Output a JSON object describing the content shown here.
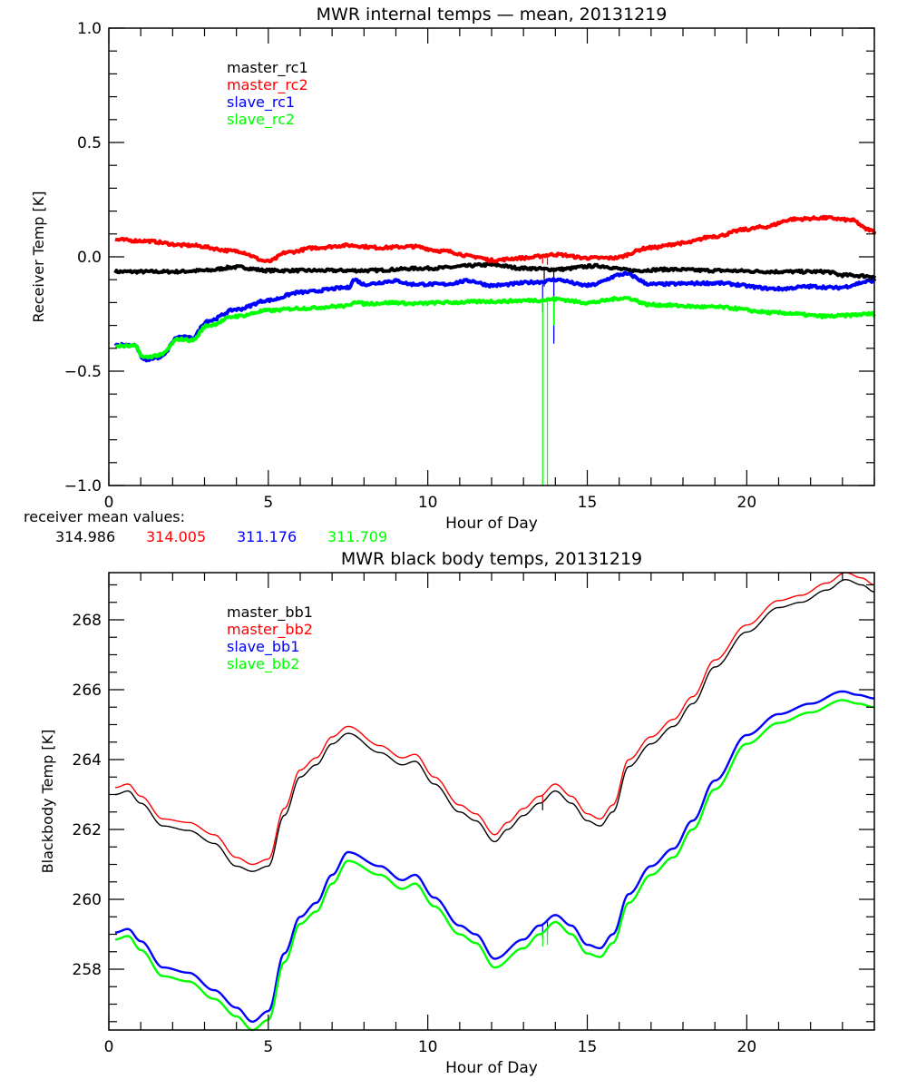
{
  "chart_data": [
    {
      "type": "line",
      "title": "MWR internal temps — mean, 20131219",
      "xlabel": "Hour of Day",
      "ylabel": "Receiver Temp [K]",
      "xlim": [
        0,
        24
      ],
      "ylim": [
        -1.0,
        1.0
      ],
      "xticks": [
        0,
        5,
        10,
        15,
        20
      ],
      "xtick_labels": [
        "0",
        "5",
        "10",
        "15",
        "20"
      ],
      "x_minor_step": 1,
      "yticks": [
        -1.0,
        -0.5,
        0.0,
        0.5,
        1.0
      ],
      "ytick_labels": [
        "−1.0",
        "−0.5",
        "0.0",
        "0.5",
        "1.0"
      ],
      "y_minor_step": 0.1,
      "grid": false,
      "legend_position": "top-left",
      "series": [
        {
          "name": "master_rc1",
          "color": "#000000",
          "width": "thick",
          "x": [
            0.2,
            2,
            3,
            4,
            5,
            6,
            8,
            10,
            12,
            13,
            14,
            15.3,
            16.5,
            17.5,
            19,
            21,
            22.5,
            23,
            24
          ],
          "y": [
            -0.065,
            -0.065,
            -0.06,
            -0.045,
            -0.06,
            -0.06,
            -0.06,
            -0.05,
            -0.035,
            -0.05,
            -0.055,
            -0.04,
            -0.06,
            -0.055,
            -0.06,
            -0.065,
            -0.065,
            -0.08,
            -0.085
          ],
          "spikes": [
            {
              "x": 13.65,
              "to": -0.13
            },
            {
              "x": 13.95,
              "to": -0.37
            }
          ]
        },
        {
          "name": "master_rc2",
          "color": "#ff0000",
          "width": "thick",
          "x": [
            0.2,
            1,
            2.5,
            4,
            5,
            5.6,
            6.5,
            7.5,
            8.5,
            9.5,
            10.5,
            11.5,
            12,
            13,
            14,
            15,
            15.8,
            17,
            18,
            19,
            20,
            20.5,
            21.5,
            22.5,
            23.3,
            23.8,
            24
          ],
          "y": [
            0.075,
            0.07,
            0.05,
            0.025,
            -0.02,
            0.02,
            0.04,
            0.05,
            0.04,
            0.045,
            0.025,
            0.0,
            -0.015,
            -0.005,
            0.01,
            -0.005,
            -0.005,
            0.04,
            0.06,
            0.09,
            0.12,
            0.13,
            0.165,
            0.17,
            0.16,
            0.12,
            0.11
          ],
          "spikes": [
            {
              "x": 13.6,
              "to": -0.03
            },
            {
              "x": 13.75,
              "to": -0.035
            }
          ]
        },
        {
          "name": "slave_rc1",
          "color": "#0000ff",
          "width": "thick",
          "x": [
            0.2,
            0.8,
            1.1,
            1.6,
            2.2,
            2.6,
            3.1,
            4,
            5,
            6,
            7.5,
            7.7,
            8,
            9,
            9.5,
            10.5,
            11.3,
            12,
            13.5,
            14,
            15,
            16.2,
            17,
            19,
            21,
            22,
            22.8,
            24
          ],
          "y": [
            -0.385,
            -0.385,
            -0.45,
            -0.44,
            -0.35,
            -0.355,
            -0.28,
            -0.23,
            -0.19,
            -0.155,
            -0.135,
            -0.1,
            -0.12,
            -0.105,
            -0.12,
            -0.12,
            -0.105,
            -0.125,
            -0.11,
            -0.1,
            -0.125,
            -0.075,
            -0.12,
            -0.115,
            -0.14,
            -0.13,
            -0.135,
            -0.105
          ],
          "spikes": [
            {
              "x": 13.6,
              "to": -0.24
            },
            {
              "x": 13.95,
              "to": -0.38
            }
          ]
        },
        {
          "name": "slave_rc2",
          "color": "#00ff00",
          "width": "thick",
          "x": [
            0.2,
            0.8,
            1.1,
            1.6,
            2.2,
            2.6,
            3.1,
            4,
            5,
            6,
            7.5,
            7.7,
            8,
            9,
            9.5,
            10.5,
            12,
            13.5,
            14,
            15,
            16.2,
            17,
            19,
            21,
            22.5,
            24
          ],
          "y": [
            -0.39,
            -0.39,
            -0.44,
            -0.43,
            -0.36,
            -0.365,
            -0.3,
            -0.26,
            -0.235,
            -0.225,
            -0.215,
            -0.195,
            -0.205,
            -0.2,
            -0.205,
            -0.2,
            -0.195,
            -0.19,
            -0.185,
            -0.2,
            -0.18,
            -0.21,
            -0.22,
            -0.245,
            -0.26,
            -0.25
          ],
          "spikes": [
            {
              "x": 13.6,
              "to": -1.0
            },
            {
              "x": 13.75,
              "to": -1.0
            },
            {
              "x": 13.95,
              "to": -0.3
            }
          ]
        }
      ],
      "annotation": {
        "label": "receiver mean values:",
        "values": [
          {
            "text": "314.986",
            "color": "#000000"
          },
          {
            "text": "314.005",
            "color": "#ff0000"
          },
          {
            "text": "311.176",
            "color": "#0000ff"
          },
          {
            "text": "311.709",
            "color": "#00ff00"
          }
        ]
      }
    },
    {
      "type": "line",
      "title": "MWR black body temps, 20131219",
      "xlabel": "Hour of Day",
      "ylabel": "Blackbody Temp [K]",
      "xlim": [
        0,
        24
      ],
      "ylim": [
        256.26,
        269.35
      ],
      "xticks": [
        0,
        5,
        10,
        15,
        20
      ],
      "xtick_labels": [
        "0",
        "5",
        "10",
        "15",
        "20"
      ],
      "x_minor_step": 1,
      "yticks": [
        258,
        260,
        262,
        264,
        266,
        268
      ],
      "ytick_labels": [
        "258",
        "260",
        "262",
        "264",
        "266",
        "268"
      ],
      "y_minor_step": 0.5,
      "grid": false,
      "legend_position": "top-left",
      "series": [
        {
          "name": "master_bb1",
          "color": "#000000",
          "width": "thin",
          "x": [
            0.2,
            0.6,
            1.0,
            1.7,
            2.5,
            3.3,
            4.0,
            4.5,
            5.0,
            5.5,
            6.0,
            6.5,
            7.0,
            7.5,
            8.5,
            9.2,
            9.6,
            10.2,
            11.0,
            11.5,
            12.1,
            12.5,
            13.0,
            13.5,
            14.0,
            14.5,
            15.0,
            15.4,
            15.8,
            16.3,
            17.0,
            17.7,
            18.3,
            19.0,
            20.0,
            21.0,
            21.7,
            22.5,
            23.1,
            23.6,
            24.0
          ],
          "y": [
            263.0,
            263.1,
            262.75,
            262.1,
            261.97,
            261.6,
            260.95,
            260.8,
            260.95,
            262.4,
            263.5,
            263.85,
            264.45,
            264.75,
            264.2,
            263.85,
            263.95,
            263.3,
            262.5,
            262.25,
            261.65,
            262.0,
            262.4,
            262.75,
            263.1,
            262.75,
            262.25,
            262.1,
            262.5,
            263.8,
            264.45,
            264.95,
            265.6,
            266.65,
            267.65,
            268.35,
            268.5,
            268.85,
            269.15,
            269.0,
            268.8
          ],
          "spikes": [
            {
              "x": 13.6,
              "to": 262.55
            }
          ]
        },
        {
          "name": "master_bb2",
          "color": "#ff0000",
          "width": "thin",
          "x": [
            0.2,
            0.6,
            1.0,
            1.7,
            2.5,
            3.3,
            4.0,
            4.5,
            5.0,
            5.5,
            6.0,
            6.5,
            7.0,
            7.5,
            8.5,
            9.2,
            9.6,
            10.2,
            11.0,
            11.5,
            12.1,
            12.5,
            13.0,
            13.5,
            14.0,
            14.5,
            15.0,
            15.4,
            15.8,
            16.3,
            17.0,
            17.7,
            18.3,
            19.0,
            20.0,
            21.0,
            21.7,
            22.5,
            23.1,
            23.6,
            24.0
          ],
          "y": [
            263.2,
            263.3,
            262.95,
            262.3,
            262.2,
            261.85,
            261.2,
            261.0,
            261.15,
            262.6,
            263.7,
            264.05,
            264.65,
            264.95,
            264.4,
            264.05,
            264.15,
            263.5,
            262.7,
            262.45,
            261.85,
            262.2,
            262.6,
            262.95,
            263.3,
            262.95,
            262.45,
            262.3,
            262.7,
            264.0,
            264.65,
            265.15,
            265.8,
            266.85,
            267.85,
            268.55,
            268.7,
            269.05,
            269.35,
            269.2,
            269.0
          ],
          "spikes": [
            {
              "x": 13.6,
              "to": 262.75
            }
          ]
        },
        {
          "name": "slave_bb1",
          "color": "#0000ff",
          "width": "thick",
          "x": [
            0.2,
            0.6,
            1.0,
            1.7,
            2.5,
            3.3,
            4.0,
            4.5,
            5.0,
            5.5,
            6.0,
            6.5,
            7.0,
            7.5,
            8.5,
            9.2,
            9.6,
            10.2,
            11.0,
            11.5,
            12.1,
            13.0,
            13.5,
            14.0,
            14.5,
            15.0,
            15.4,
            15.8,
            16.3,
            17.0,
            17.7,
            18.3,
            19.0,
            20.0,
            21.0,
            22.0,
            23.0,
            23.5,
            24.0
          ],
          "y": [
            259.05,
            259.15,
            258.8,
            258.05,
            257.9,
            257.4,
            256.9,
            256.5,
            256.8,
            258.45,
            259.5,
            259.9,
            260.7,
            261.35,
            260.95,
            260.55,
            260.7,
            260.05,
            259.25,
            259.0,
            258.3,
            258.85,
            259.25,
            259.55,
            259.25,
            258.7,
            258.6,
            259.0,
            260.15,
            260.95,
            261.45,
            262.25,
            263.4,
            264.7,
            265.3,
            265.6,
            265.95,
            265.85,
            265.75
          ],
          "spikes": [
            {
              "x": 13.6,
              "to": 258.9
            },
            {
              "x": 13.75,
              "to": 259.0
            }
          ]
        },
        {
          "name": "slave_bb2",
          "color": "#00ff00",
          "width": "thick",
          "x": [
            0.2,
            0.6,
            1.0,
            1.7,
            2.5,
            3.3,
            4.0,
            4.5,
            5.0,
            5.5,
            6.0,
            6.5,
            7.0,
            7.5,
            8.5,
            9.2,
            9.6,
            10.2,
            11.0,
            11.5,
            12.1,
            13.0,
            13.5,
            14.0,
            14.5,
            15.0,
            15.4,
            15.8,
            16.3,
            17.0,
            17.7,
            18.3,
            19.0,
            20.0,
            21.0,
            22.0,
            23.0,
            23.5,
            24.0
          ],
          "y": [
            258.85,
            258.95,
            258.55,
            257.8,
            257.65,
            257.15,
            256.65,
            256.26,
            256.55,
            258.2,
            259.3,
            259.65,
            260.45,
            261.1,
            260.7,
            260.3,
            260.45,
            259.8,
            259.0,
            258.75,
            258.05,
            258.6,
            259.0,
            259.35,
            259.0,
            258.45,
            258.35,
            258.75,
            259.9,
            260.7,
            261.2,
            262.0,
            263.15,
            264.45,
            265.05,
            265.35,
            265.7,
            265.6,
            265.5
          ],
          "spikes": [
            {
              "x": 13.6,
              "to": 258.65
            },
            {
              "x": 13.75,
              "to": 258.7
            }
          ]
        }
      ]
    }
  ]
}
